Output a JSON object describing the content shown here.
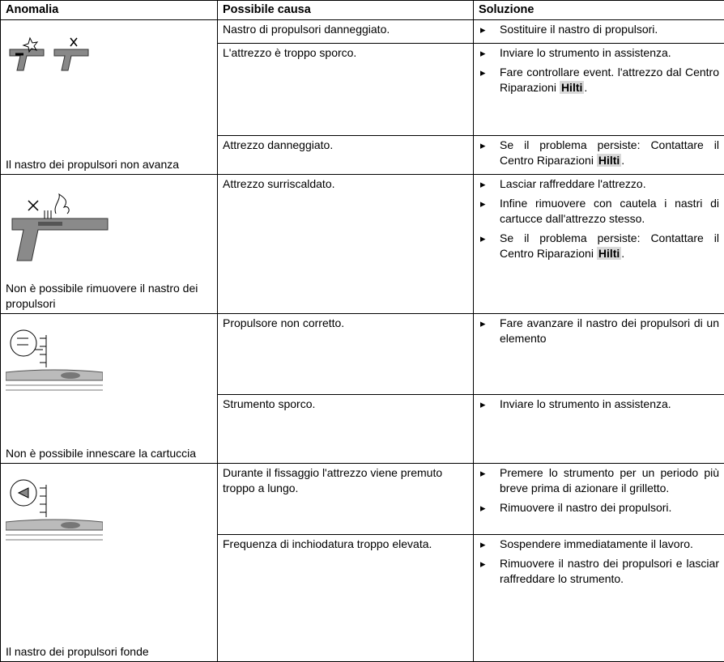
{
  "header": {
    "anomaly": "Anomalia",
    "cause": "Possibile causa",
    "solution": "Soluzione"
  },
  "anomalies": [
    {
      "label": "Il nastro dei propulsori non avanza",
      "causes": [
        {
          "cause": "Nastro di propulsori danneggiato.",
          "solutions": [
            "Sostituire il nastro di propulsori."
          ]
        },
        {
          "cause": "L'attrezzo è troppo sporco.",
          "solutions": [
            "Inviare lo strumento in assistenza.",
            {
              "text": "Fare controllare event. l'attrezzo dal Centro Riparazioni",
              "brand": "Hilti",
              "end": "."
            }
          ]
        },
        {
          "cause": "Attrezzo danneggiato.",
          "solutions": [
            {
              "text": "Se il problema persiste: Contattare il Centro Riparazioni",
              "brand": "Hilti",
              "end": "."
            }
          ]
        }
      ]
    },
    {
      "label": "Non è possibile rimuovere il nastro dei propulsori",
      "causes": [
        {
          "cause": "Attrezzo surriscaldato.",
          "solutions": [
            "Lasciar raffreddare l'attrezzo.",
            "Infine rimuovere con cautela i nastri di cartucce dall'attrezzo stesso.",
            {
              "text": "Se il problema persiste: Contattare il Centro Riparazioni",
              "brand": "Hilti",
              "end": "."
            }
          ]
        }
      ]
    },
    {
      "label": "Non è possibile innescare la cartuccia",
      "causes": [
        {
          "cause": "Propulsore non corretto.",
          "solutions": [
            "Fare avanzare il nastro dei propulsori di un elemento"
          ]
        },
        {
          "cause": "Strumento sporco.",
          "solutions": [
            "Inviare lo strumento in assistenza."
          ]
        }
      ]
    },
    {
      "label": "Il nastro dei propulsori fonde",
      "causes": [
        {
          "cause": "Durante il fissaggio l'attrezzo viene premuto troppo a lungo.",
          "solutions": [
            "Premere lo strumento per un periodo più breve prima di azionare il grilletto.",
            "Rimuovere il nastro dei propulsori."
          ]
        },
        {
          "cause": "Frequenza di inchiodatura troppo elevata.",
          "solutions": [
            "Sospendere immediatamente il lavoro.",
            "Rimuovere il nastro dei propulsori e lasciar raffreddare lo strumento."
          ]
        }
      ]
    }
  ]
}
